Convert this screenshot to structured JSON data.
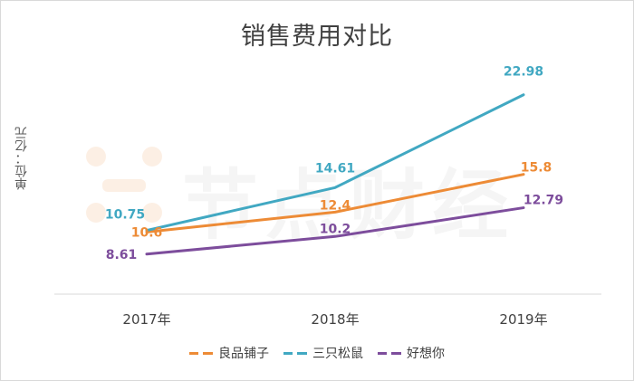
{
  "chart_data": {
    "type": "line",
    "title": "销售费用对比",
    "ylabel": "单位：亿元",
    "xlabel": "",
    "categories": [
      "2017年",
      "2018年",
      "2019年"
    ],
    "ylim": [
      5,
      25
    ],
    "grid": false,
    "legend_position": "bottom",
    "series": [
      {
        "name": "良品铺子",
        "values": [
          10.6,
          12.4,
          15.8
        ],
        "labels": [
          "10.6",
          "12.4",
          "15.8"
        ],
        "color": "#ed8b36",
        "dashed_legend": true
      },
      {
        "name": "三只松鼠",
        "values": [
          10.75,
          14.61,
          22.98
        ],
        "labels": [
          "10.75",
          "14.61",
          "22.98"
        ],
        "color": "#41a8c2",
        "dashed_legend": true
      },
      {
        "name": "好想你",
        "values": [
          8.61,
          10.2,
          12.79
        ],
        "labels": [
          "8.61",
          "10.2",
          "12.79"
        ],
        "color": "#7d4d9c",
        "dashed_legend": true
      }
    ]
  },
  "watermark": {
    "text": "节点财经",
    "icon": "watermark-logo-icon"
  }
}
